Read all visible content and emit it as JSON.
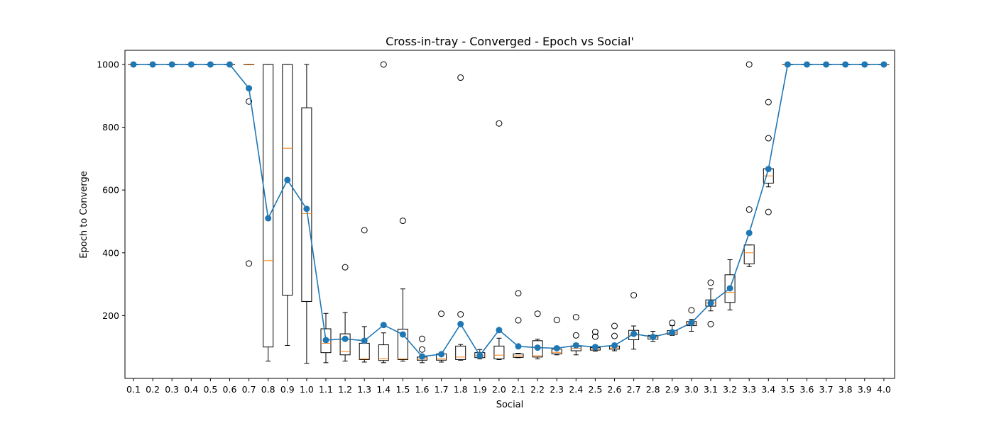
{
  "chart_data": {
    "type": "box",
    "title": "Cross-in-tray - Converged - Epoch vs Social'",
    "xlabel": "Social",
    "ylabel": "Epoch to Converge",
    "ylim": [
      0,
      1045
    ],
    "yticks": [
      200,
      400,
      600,
      800,
      1000
    ],
    "grid": false,
    "categories": [
      "0.1",
      "0.2",
      "0.3",
      "0.4",
      "0.5",
      "0.6",
      "0.7",
      "0.8",
      "0.9",
      "1.0",
      "1.1",
      "1.2",
      "1.3",
      "1.4",
      "1.5",
      "1.6",
      "1.7",
      "1.8",
      "1.9",
      "2.0",
      "2.1",
      "2.2",
      "2.3",
      "2.4",
      "2.5",
      "2.6",
      "2.7",
      "2.8",
      "2.9",
      "3.0",
      "3.1",
      "3.2",
      "3.3",
      "3.4",
      "3.5",
      "3.6",
      "3.7",
      "3.8",
      "3.9",
      "4.0"
    ],
    "mean_series": {
      "color": "#1f77b4",
      "values": [
        1000,
        1000,
        1000,
        1000,
        1000,
        1000,
        924,
        510,
        632,
        540,
        122,
        126,
        120,
        170,
        140,
        70,
        77,
        173,
        73,
        154,
        102,
        98,
        96,
        105,
        100,
        105,
        142,
        132,
        147,
        177,
        240,
        287,
        463,
        667,
        1000,
        1000,
        1000,
        1000,
        1000,
        1000
      ]
    },
    "boxes": [
      {
        "whislo": 1000,
        "q1": 1000,
        "med": 1000,
        "q3": 1000,
        "whishi": 1000,
        "fliers": []
      },
      {
        "whislo": 1000,
        "q1": 1000,
        "med": 1000,
        "q3": 1000,
        "whishi": 1000,
        "fliers": []
      },
      {
        "whislo": 1000,
        "q1": 1000,
        "med": 1000,
        "q3": 1000,
        "whishi": 1000,
        "fliers": []
      },
      {
        "whislo": 1000,
        "q1": 1000,
        "med": 1000,
        "q3": 1000,
        "whishi": 1000,
        "fliers": []
      },
      {
        "whislo": 1000,
        "q1": 1000,
        "med": 1000,
        "q3": 1000,
        "whishi": 1000,
        "fliers": []
      },
      {
        "whislo": 1000,
        "q1": 1000,
        "med": 1000,
        "q3": 1000,
        "whishi": 1000,
        "fliers": []
      },
      {
        "whislo": 1000,
        "q1": 1000,
        "med": 1000,
        "q3": 1000,
        "whishi": 1000,
        "fliers": [
          882,
          366
        ]
      },
      {
        "whislo": 55,
        "q1": 100,
        "med": 375,
        "q3": 1000,
        "whishi": 1000,
        "fliers": []
      },
      {
        "whislo": 105,
        "q1": 265,
        "med": 733,
        "q3": 1000,
        "whishi": 1000,
        "fliers": []
      },
      {
        "whislo": 48,
        "q1": 245,
        "med": 525,
        "q3": 862,
        "whishi": 1000,
        "fliers": []
      },
      {
        "whislo": 50,
        "q1": 82,
        "med": 112,
        "q3": 158,
        "whishi": 207,
        "fliers": []
      },
      {
        "whislo": 55,
        "q1": 75,
        "med": 85,
        "q3": 142,
        "whishi": 210,
        "fliers": [
          354
        ]
      },
      {
        "whislo": 52,
        "q1": 60,
        "med": 62,
        "q3": 112,
        "whishi": 165,
        "fliers": [
          472
        ]
      },
      {
        "whislo": 50,
        "q1": 57,
        "med": 63,
        "q3": 107,
        "whishi": 145,
        "fliers": [
          1000
        ]
      },
      {
        "whislo": 55,
        "q1": 60,
        "med": 62,
        "q3": 157,
        "whishi": 285,
        "fliers": [
          502
        ]
      },
      {
        "whislo": 50,
        "q1": 58,
        "med": 62,
        "q3": 68,
        "whishi": 72,
        "fliers": [
          126,
          92
        ]
      },
      {
        "whislo": 52,
        "q1": 58,
        "med": 62,
        "q3": 78,
        "whishi": 82,
        "fliers": [
          206
        ]
      },
      {
        "whislo": 58,
        "q1": 60,
        "med": 68,
        "q3": 103,
        "whishi": 108,
        "fliers": [
          958,
          204
        ]
      },
      {
        "whislo": 62,
        "q1": 66,
        "med": 72,
        "q3": 82,
        "whishi": 92,
        "fliers": []
      },
      {
        "whislo": 60,
        "q1": 62,
        "med": 74,
        "q3": 103,
        "whishi": 128,
        "fliers": [
          812
        ]
      },
      {
        "whislo": 66,
        "q1": 67,
        "med": 72,
        "q3": 78,
        "whishi": 80,
        "fliers": [
          271,
          185
        ]
      },
      {
        "whislo": 62,
        "q1": 68,
        "med": 72,
        "q3": 120,
        "whishi": 125,
        "fliers": [
          206
        ]
      },
      {
        "whislo": 75,
        "q1": 78,
        "med": 83,
        "q3": 93,
        "whishi": 97,
        "fliers": [
          186
        ]
      },
      {
        "whislo": 75,
        "q1": 88,
        "med": 96,
        "q3": 102,
        "whishi": 112,
        "fliers": [
          195,
          137
        ]
      },
      {
        "whislo": 87,
        "q1": 90,
        "med": 94,
        "q3": 98,
        "whishi": 105,
        "fliers": [
          148,
          133
        ]
      },
      {
        "whislo": 88,
        "q1": 93,
        "med": 97,
        "q3": 103,
        "whishi": 110,
        "fliers": [
          167,
          135
        ]
      },
      {
        "whislo": 93,
        "q1": 123,
        "med": 138,
        "q3": 153,
        "whishi": 167,
        "fliers": [
          265
        ]
      },
      {
        "whislo": 118,
        "q1": 125,
        "med": 131,
        "q3": 137,
        "whishi": 150,
        "fliers": []
      },
      {
        "whislo": 137,
        "q1": 140,
        "med": 145,
        "q3": 152,
        "whishi": 168,
        "fliers": [
          177
        ]
      },
      {
        "whislo": 150,
        "q1": 168,
        "med": 174,
        "q3": 181,
        "whishi": 188,
        "fliers": [
          217
        ]
      },
      {
        "whislo": 215,
        "q1": 230,
        "med": 240,
        "q3": 250,
        "whishi": 285,
        "fliers": [
          305,
          173
        ]
      },
      {
        "whislo": 218,
        "q1": 242,
        "med": 274,
        "q3": 330,
        "whishi": 378,
        "fliers": []
      },
      {
        "whislo": 356,
        "q1": 365,
        "med": 400,
        "q3": 425,
        "whishi": 425,
        "fliers": [
          1000,
          538
        ]
      },
      {
        "whislo": 610,
        "q1": 622,
        "med": 645,
        "q3": 668,
        "whishi": 668,
        "fliers": [
          880,
          765,
          530
        ]
      },
      {
        "whislo": 1000,
        "q1": 1000,
        "med": 1000,
        "q3": 1000,
        "whishi": 1000,
        "fliers": []
      },
      {
        "whislo": 1000,
        "q1": 1000,
        "med": 1000,
        "q3": 1000,
        "whishi": 1000,
        "fliers": []
      },
      {
        "whislo": 1000,
        "q1": 1000,
        "med": 1000,
        "q3": 1000,
        "whishi": 1000,
        "fliers": []
      },
      {
        "whislo": 1000,
        "q1": 1000,
        "med": 1000,
        "q3": 1000,
        "whishi": 1000,
        "fliers": []
      },
      {
        "whislo": 1000,
        "q1": 1000,
        "med": 1000,
        "q3": 1000,
        "whishi": 1000,
        "fliers": []
      },
      {
        "whislo": 1000,
        "q1": 1000,
        "med": 1000,
        "q3": 1000,
        "whishi": 1000,
        "fliers": []
      }
    ],
    "colors": {
      "box": "#000000",
      "median": "#ff7f0e",
      "mean": "#1f77b4"
    }
  }
}
